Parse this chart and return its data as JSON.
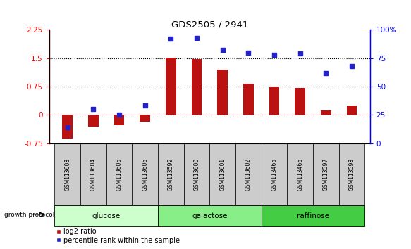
{
  "title": "GDS2505 / 2941",
  "samples": [
    "GSM113603",
    "GSM113604",
    "GSM113605",
    "GSM113606",
    "GSM113599",
    "GSM113600",
    "GSM113601",
    "GSM113602",
    "GSM113465",
    "GSM113466",
    "GSM113597",
    "GSM113598"
  ],
  "log2_ratio": [
    -0.62,
    -0.32,
    -0.28,
    -0.18,
    1.52,
    1.47,
    1.2,
    0.82,
    0.75,
    0.72,
    0.12,
    0.25
  ],
  "percentile_rank": [
    14,
    30,
    25,
    33,
    92,
    93,
    82,
    80,
    78,
    79,
    62,
    68
  ],
  "groups": [
    {
      "label": "glucose",
      "start": 0,
      "end": 3,
      "color": "#ccffcc"
    },
    {
      "label": "galactose",
      "start": 4,
      "end": 7,
      "color": "#88ee88"
    },
    {
      "label": "raffinose",
      "start": 8,
      "end": 11,
      "color": "#44cc44"
    }
  ],
  "growth_protocol_label": "growth protocol",
  "bar_color": "#bb1111",
  "dot_color": "#2222cc",
  "ylim_left": [
    -0.75,
    2.25
  ],
  "ylim_right": [
    0,
    100
  ],
  "yticks_left": [
    -0.75,
    0,
    0.75,
    1.5,
    2.25
  ],
  "yticks_right": [
    0,
    25,
    50,
    75,
    100
  ],
  "hlines": [
    0.75,
    1.5
  ],
  "legend_items": [
    "log2 ratio",
    "percentile rank within the sample"
  ],
  "label_box_color": "#cccccc",
  "top_spine_color": "#999999",
  "bar_width": 0.4
}
